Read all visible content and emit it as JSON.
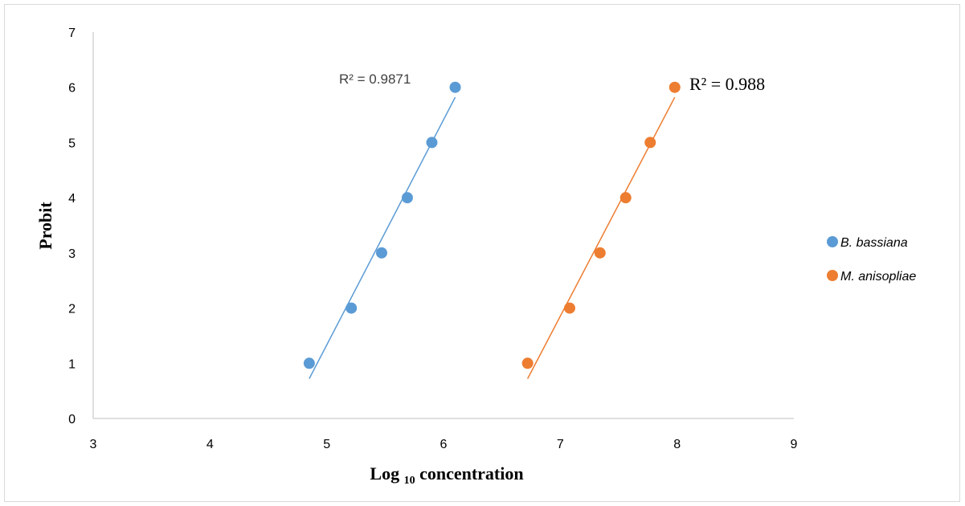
{
  "chart_data": {
    "type": "scatter",
    "xlabel": "Log",
    "xlabel_subscript": "10",
    "xlabel_tail": "concentration",
    "ylabel": "Probit",
    "xlim": [
      3,
      9
    ],
    "ylim": [
      0,
      7
    ],
    "xticks": [
      "3",
      "4",
      "5",
      "6",
      "7",
      "8",
      "9"
    ],
    "yticks": [
      "0",
      "1",
      "2",
      "3",
      "4",
      "5",
      "6",
      "7"
    ],
    "grid": false,
    "legend_position": "right",
    "series": [
      {
        "name": "B. bassiana",
        "color": "#5b9bd5",
        "x": [
          4.85,
          5.21,
          5.47,
          5.69,
          5.9,
          6.1
        ],
        "y": [
          1,
          2,
          3,
          4,
          5,
          6
        ],
        "trendline": {
          "x": [
            4.85,
            6.1
          ],
          "y": [
            0.72,
            5.82
          ]
        },
        "r2_label": "R² = 0.9871"
      },
      {
        "name": "M. anisopliae",
        "color": "#ed7d31",
        "x": [
          6.72,
          7.08,
          7.34,
          7.56,
          7.77,
          7.98
        ],
        "y": [
          1,
          2,
          3,
          4,
          5,
          6
        ],
        "trendline": {
          "x": [
            6.72,
            7.98
          ],
          "y": [
            0.72,
            5.82
          ]
        },
        "r2_label": "R² = 0.988"
      }
    ]
  }
}
